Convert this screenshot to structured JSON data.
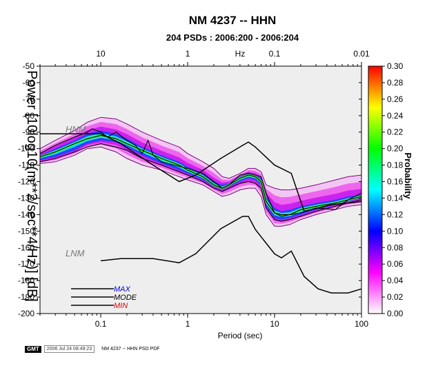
{
  "chart_data": {
    "type": "heatmap",
    "title": "NM 4237 -- HHN",
    "subtitle": "204 PSDs : 2006:200 - 2006:204",
    "xlabel": "Period (sec)",
    "ylabel": "Power [10log10(m**2/sec**4/Hz)] [dB]",
    "x2label": "Hz",
    "x_scale": "log",
    "xlim": [
      0.02,
      100
    ],
    "ylim": [
      -200,
      -50
    ],
    "x_ticks": [
      0.1,
      1,
      10,
      100
    ],
    "x_tick_labels": [
      "0.1",
      "1",
      "10",
      "100"
    ],
    "x2_ticks": [
      10,
      1,
      0.1,
      0.01
    ],
    "x2_tick_labels": [
      "10",
      "1",
      "0.1",
      "0.01"
    ],
    "y_ticks": [
      -50,
      -60,
      -70,
      -80,
      -90,
      -100,
      -110,
      -120,
      -130,
      -140,
      -150,
      -160,
      -170,
      -180,
      -190,
      -200
    ],
    "y_tick_labels": [
      "-50",
      "-60",
      "-70",
      "-80",
      "-90",
      "-100",
      "-110",
      "-120",
      "-130",
      "-140",
      "-150",
      "-160",
      "-170",
      "-180",
      "-190",
      "-200"
    ],
    "colorbar": {
      "label": "Probability",
      "range": [
        0,
        0.3
      ],
      "ticks": [
        0.3,
        0.28,
        0.26,
        0.24,
        0.22,
        0.2,
        0.18,
        0.16,
        0.14,
        0.12,
        0.1,
        0.08,
        0.06,
        0.04,
        0.02,
        0.0
      ],
      "tick_labels": [
        "0.30",
        "0.28",
        "0.26",
        "0.24",
        "0.22",
        "0.20",
        "0.18",
        "0.16",
        "0.14",
        "0.12",
        "0.10",
        "0.08",
        "0.06",
        "0.04",
        "0.02",
        "0.00"
      ],
      "colors": [
        "#ffffff",
        "#ff00ff",
        "#0000ff",
        "#00ffff",
        "#00ff00",
        "#ffff00",
        "#ff0000"
      ]
    },
    "pdf_band": {
      "x": [
        0.02,
        0.03,
        0.05,
        0.07,
        0.1,
        0.15,
        0.2,
        0.3,
        0.5,
        0.8,
        1,
        1.5,
        2,
        2.5,
        3,
        4,
        5,
        6,
        7,
        8,
        10,
        12,
        15,
        20,
        30,
        50,
        70,
        100
      ],
      "upper": [
        -100,
        -95,
        -89,
        -84,
        -81,
        -82,
        -85,
        -90,
        -95,
        -99,
        -103,
        -108,
        -112,
        -117,
        -118,
        -115,
        -112,
        -112,
        -114,
        -122,
        -124,
        -125,
        -125,
        -124,
        -122,
        -119,
        -117,
        -116
      ],
      "lower": [
        -109,
        -108,
        -104,
        -100,
        -99,
        -102,
        -106,
        -110,
        -113,
        -117,
        -119,
        -122,
        -126,
        -129,
        -128,
        -125,
        -124,
        -124,
        -129,
        -140,
        -147,
        -147,
        -146,
        -143,
        -140,
        -137,
        -135,
        -134
      ],
      "core_upper": [
        -104,
        -100,
        -95,
        -91,
        -89,
        -91,
        -94,
        -99,
        -104,
        -108,
        -111,
        -115,
        -120,
        -122,
        -121,
        -117,
        -115,
        -116,
        -118,
        -129,
        -136,
        -138,
        -137,
        -135,
        -133,
        -131,
        -129,
        -128
      ],
      "core_lower": [
        -107,
        -105,
        -101,
        -97,
        -95,
        -96,
        -99,
        -104,
        -109,
        -113,
        -115,
        -119,
        -123,
        -125,
        -123,
        -120,
        -118,
        -119,
        -122,
        -135,
        -142,
        -143,
        -142,
        -140,
        -137,
        -134,
        -132,
        -130
      ],
      "mode": [
        -105,
        -102,
        -97,
        -94,
        -92,
        -94,
        -97,
        -101,
        -106,
        -110,
        -113,
        -117,
        -122,
        -124,
        -122,
        -118,
        -116,
        -117,
        -120,
        -132,
        -139,
        -140,
        -140,
        -137,
        -135,
        -133,
        -131,
        -129
      ]
    },
    "series": [
      {
        "name": "MAX",
        "legend_color": "#0000dd",
        "x": [
          0.02,
          0.03,
          0.05,
          0.07,
          0.08,
          0.1,
          0.12,
          0.15,
          0.2,
          0.25,
          0.3,
          0.35,
          0.4,
          0.5,
          0.7,
          1,
          1.5,
          2,
          2.5,
          3,
          4,
          5,
          6,
          7,
          8,
          10,
          12,
          15,
          20,
          30,
          50,
          70,
          100
        ],
        "y": [
          -103,
          -98,
          -93,
          -90,
          -88,
          -90,
          -93,
          -90,
          -95,
          -98,
          -103,
          -95,
          -104,
          -108,
          -110,
          -112,
          -115,
          -120,
          -124,
          -122,
          -116,
          -115,
          -116,
          -117,
          -127,
          -139,
          -141,
          -140,
          -139,
          -136,
          -137,
          -131,
          -127
        ]
      },
      {
        "name": "MODE",
        "legend_color": "#000000",
        "x": [
          0.02,
          0.03,
          0.05,
          0.07,
          0.1,
          0.15,
          0.2,
          0.3,
          0.5,
          0.8,
          1,
          1.5,
          2,
          2.5,
          3,
          4,
          5,
          6,
          7,
          8,
          10,
          12,
          15,
          20,
          30,
          50,
          70,
          100
        ],
        "y": [
          -105,
          -102,
          -97,
          -94,
          -92,
          -94,
          -97,
          -101,
          -106,
          -110,
          -113,
          -117,
          -122,
          -124,
          -122,
          -118,
          -116,
          -117,
          -120,
          -132,
          -139,
          -140,
          -140,
          -137,
          -135,
          -133,
          -131,
          -129
        ]
      },
      {
        "name": "MIN",
        "legend_color": "#dd0000",
        "x": [
          0.02,
          0.03,
          0.05,
          0.07,
          0.1,
          0.15,
          0.2,
          0.3,
          0.5,
          0.8,
          1,
          1.5,
          2,
          2.5,
          3,
          4,
          5,
          6,
          7,
          8,
          10,
          12,
          15,
          20,
          30,
          50,
          70,
          100
        ],
        "y": [
          -108,
          -106,
          -102,
          -99,
          -97,
          -99,
          -101,
          -106,
          -110,
          -114,
          -116,
          -120,
          -124,
          -126,
          -124,
          -121,
          -120,
          -121,
          -124,
          -136,
          -143,
          -144,
          -143,
          -141,
          -138,
          -135,
          -133,
          -131
        ]
      }
    ],
    "reference_curves": [
      {
        "name": "HNM",
        "x": [
          0.02,
          0.1,
          0.17,
          0.4,
          0.8,
          1.24,
          2.4,
          4.3,
          5,
          6,
          10,
          12,
          15.6,
          21.9,
          31.6,
          45,
          70,
          101
        ],
        "y": [
          -91,
          -91,
          -97,
          -110,
          -120,
          -116,
          -106,
          -98,
          -96,
          -99,
          -110,
          -112,
          -115,
          -138,
          -136,
          -134,
          -133,
          -132
        ]
      },
      {
        "name": "LNM",
        "x": [
          0.1,
          0.17,
          0.4,
          0.8,
          1.24,
          2.4,
          4.3,
          5,
          6,
          10,
          12,
          15.6,
          21.9,
          31.6,
          45,
          70,
          101
        ],
        "y": [
          -168,
          -166.7,
          -166.7,
          -169.2,
          -163.7,
          -148.6,
          -141.1,
          -141.1,
          -149,
          -163.8,
          -166.2,
          -162.1,
          -177.5,
          -185,
          -187.5,
          -187.5,
          -185
        ]
      }
    ],
    "annotations": [
      "HNM",
      "LNM"
    ],
    "legend": {
      "position": "bottom-left",
      "entries": [
        "MAX",
        "MODE",
        "MIN"
      ]
    },
    "grid": false
  },
  "footer": {
    "logo": "GMT",
    "timestamp": "2006 Jul 24 08:49:23",
    "caption": "NM 4237 -- HHN PSD PDF"
  }
}
